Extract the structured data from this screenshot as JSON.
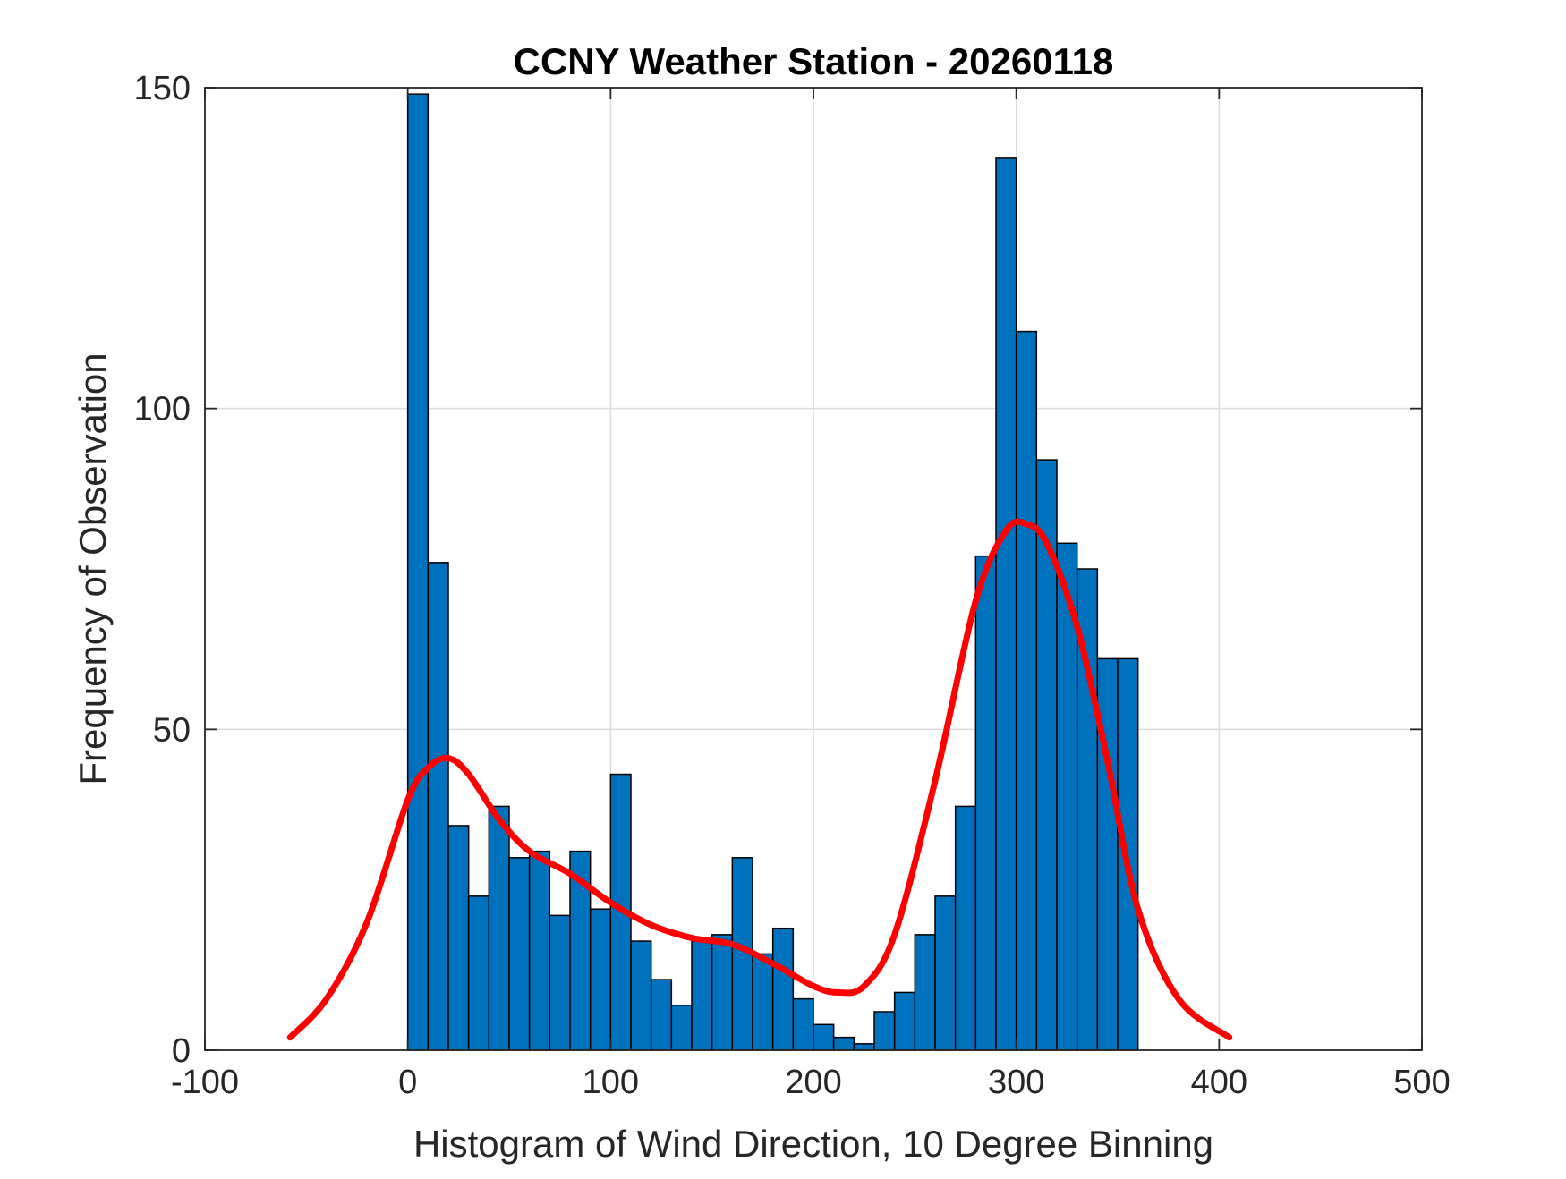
{
  "chart_data": {
    "type": "bar",
    "title": "CCNY Weather Station - 20260118",
    "xlabel": "Histogram of Wind Direction, 10 Degree Binning",
    "ylabel": "Frequency of Observation",
    "xlim": [
      -100,
      500
    ],
    "ylim": [
      0,
      150
    ],
    "xticks": [
      -100,
      0,
      100,
      200,
      300,
      400,
      500
    ],
    "yticks": [
      0,
      50,
      100,
      150
    ],
    "grid": true,
    "bin_width": 10,
    "bin_edges": [
      0,
      10,
      20,
      30,
      40,
      50,
      60,
      70,
      80,
      90,
      100,
      110,
      120,
      130,
      140,
      150,
      160,
      170,
      180,
      190,
      200,
      210,
      220,
      230,
      240,
      250,
      260,
      270,
      280,
      290,
      300,
      310,
      320,
      330,
      340,
      350,
      360
    ],
    "counts": [
      149,
      76,
      35,
      24,
      38,
      30,
      31,
      21,
      31,
      22,
      43,
      17,
      11,
      7,
      17,
      18,
      30,
      15,
      19,
      8,
      4,
      2,
      1,
      6,
      9,
      18,
      24,
      38,
      77,
      139,
      112,
      92,
      79,
      75,
      61,
      61
    ],
    "bar_color": "#0072BD",
    "bar_edge_color": "#000000",
    "density_fit": {
      "color": "#FF0000",
      "x": [
        -58,
        -40,
        -20,
        0,
        10,
        20,
        30,
        45,
        60,
        80,
        100,
        120,
        140,
        160,
        180,
        200,
        212,
        225,
        240,
        260,
        280,
        295,
        305,
        315,
        330,
        345,
        360,
        380,
        405
      ],
      "y": [
        2,
        8,
        20,
        39,
        44,
        45.5,
        43,
        36,
        31,
        27.5,
        23,
        19.5,
        17.5,
        16.5,
        13.5,
        10,
        9,
        10,
        18,
        42,
        70,
        81,
        82,
        79,
        66,
        45,
        22,
        8,
        2
      ]
    }
  }
}
